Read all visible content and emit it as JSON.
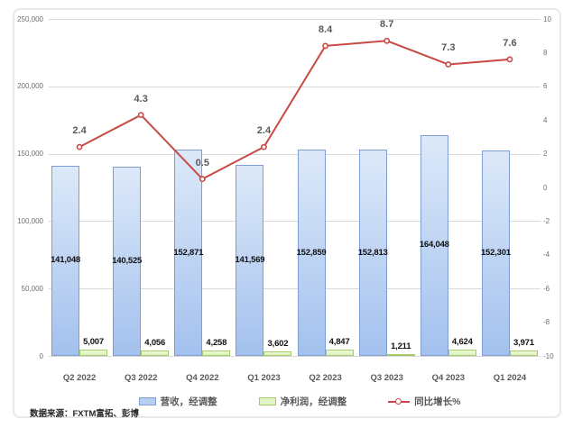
{
  "source_note": "数据来源：FXTM富拓、彭博",
  "legend": {
    "revenue_label": "营收，经调整",
    "profit_label": "净利润，经调整",
    "growth_label": "同比增长%"
  },
  "colors": {
    "revenue_fill_top": "#dde9f9",
    "revenue_fill_bottom": "#a3c1ee",
    "revenue_border": "#7e9fd4",
    "profit_fill": "#e0f3c4",
    "profit_border": "#a4cb69",
    "growth_line": "#c74a44",
    "gridline": "#d9d9d9",
    "axis_text": "#6e6e6e",
    "data_label": "#111111",
    "growth_label_text": "#595959"
  },
  "chart_data": {
    "type": "bar",
    "subtype": "combo-bar-line",
    "categories": [
      "Q2 2022",
      "Q3 2022",
      "Q4 2022",
      "Q1 2023",
      "Q2 2023",
      "Q3 2023",
      "Q4 2023",
      "Q1 2024"
    ],
    "series": [
      {
        "name": "营收，经调整",
        "type": "bar",
        "axis": "left",
        "values": [
          141048,
          140525,
          152871,
          141569,
          152859,
          152813,
          164048,
          152301
        ],
        "labels": [
          "141,048",
          "140,525",
          "152,871",
          "141,569",
          "152,859",
          "152,813",
          "164,048",
          "152,301"
        ]
      },
      {
        "name": "净利润，经调整",
        "type": "bar",
        "axis": "left",
        "values": [
          5007,
          4056,
          4258,
          3602,
          4847,
          1211,
          4624,
          3971
        ],
        "labels": [
          "5,007",
          "4,056",
          "4,258",
          "3,602",
          "4,847",
          "1,211",
          "4,624",
          "3,971"
        ]
      },
      {
        "name": "同比增长%",
        "type": "line",
        "axis": "right",
        "values": [
          2.4,
          4.3,
          0.5,
          2.4,
          8.4,
          8.7,
          7.3,
          7.6
        ],
        "labels": [
          "2.4",
          "4.3",
          "0.5",
          "2.4",
          "8.4",
          "8.7",
          "7.3",
          "7.6"
        ]
      }
    ],
    "left_axis": {
      "min": 0,
      "max": 250000,
      "step": 50000,
      "tick_labels": [
        "250,000",
        "200,000",
        "150,000",
        "100,000",
        "50,000",
        "0"
      ]
    },
    "right_axis": {
      "min": -10,
      "max": 10,
      "step": 2,
      "tick_labels": [
        "10",
        "8",
        "6",
        "4",
        "2",
        "0",
        "-2",
        "-4",
        "-6",
        "-8",
        "-10"
      ]
    },
    "grid": "horizontal",
    "legend_position": "bottom"
  }
}
